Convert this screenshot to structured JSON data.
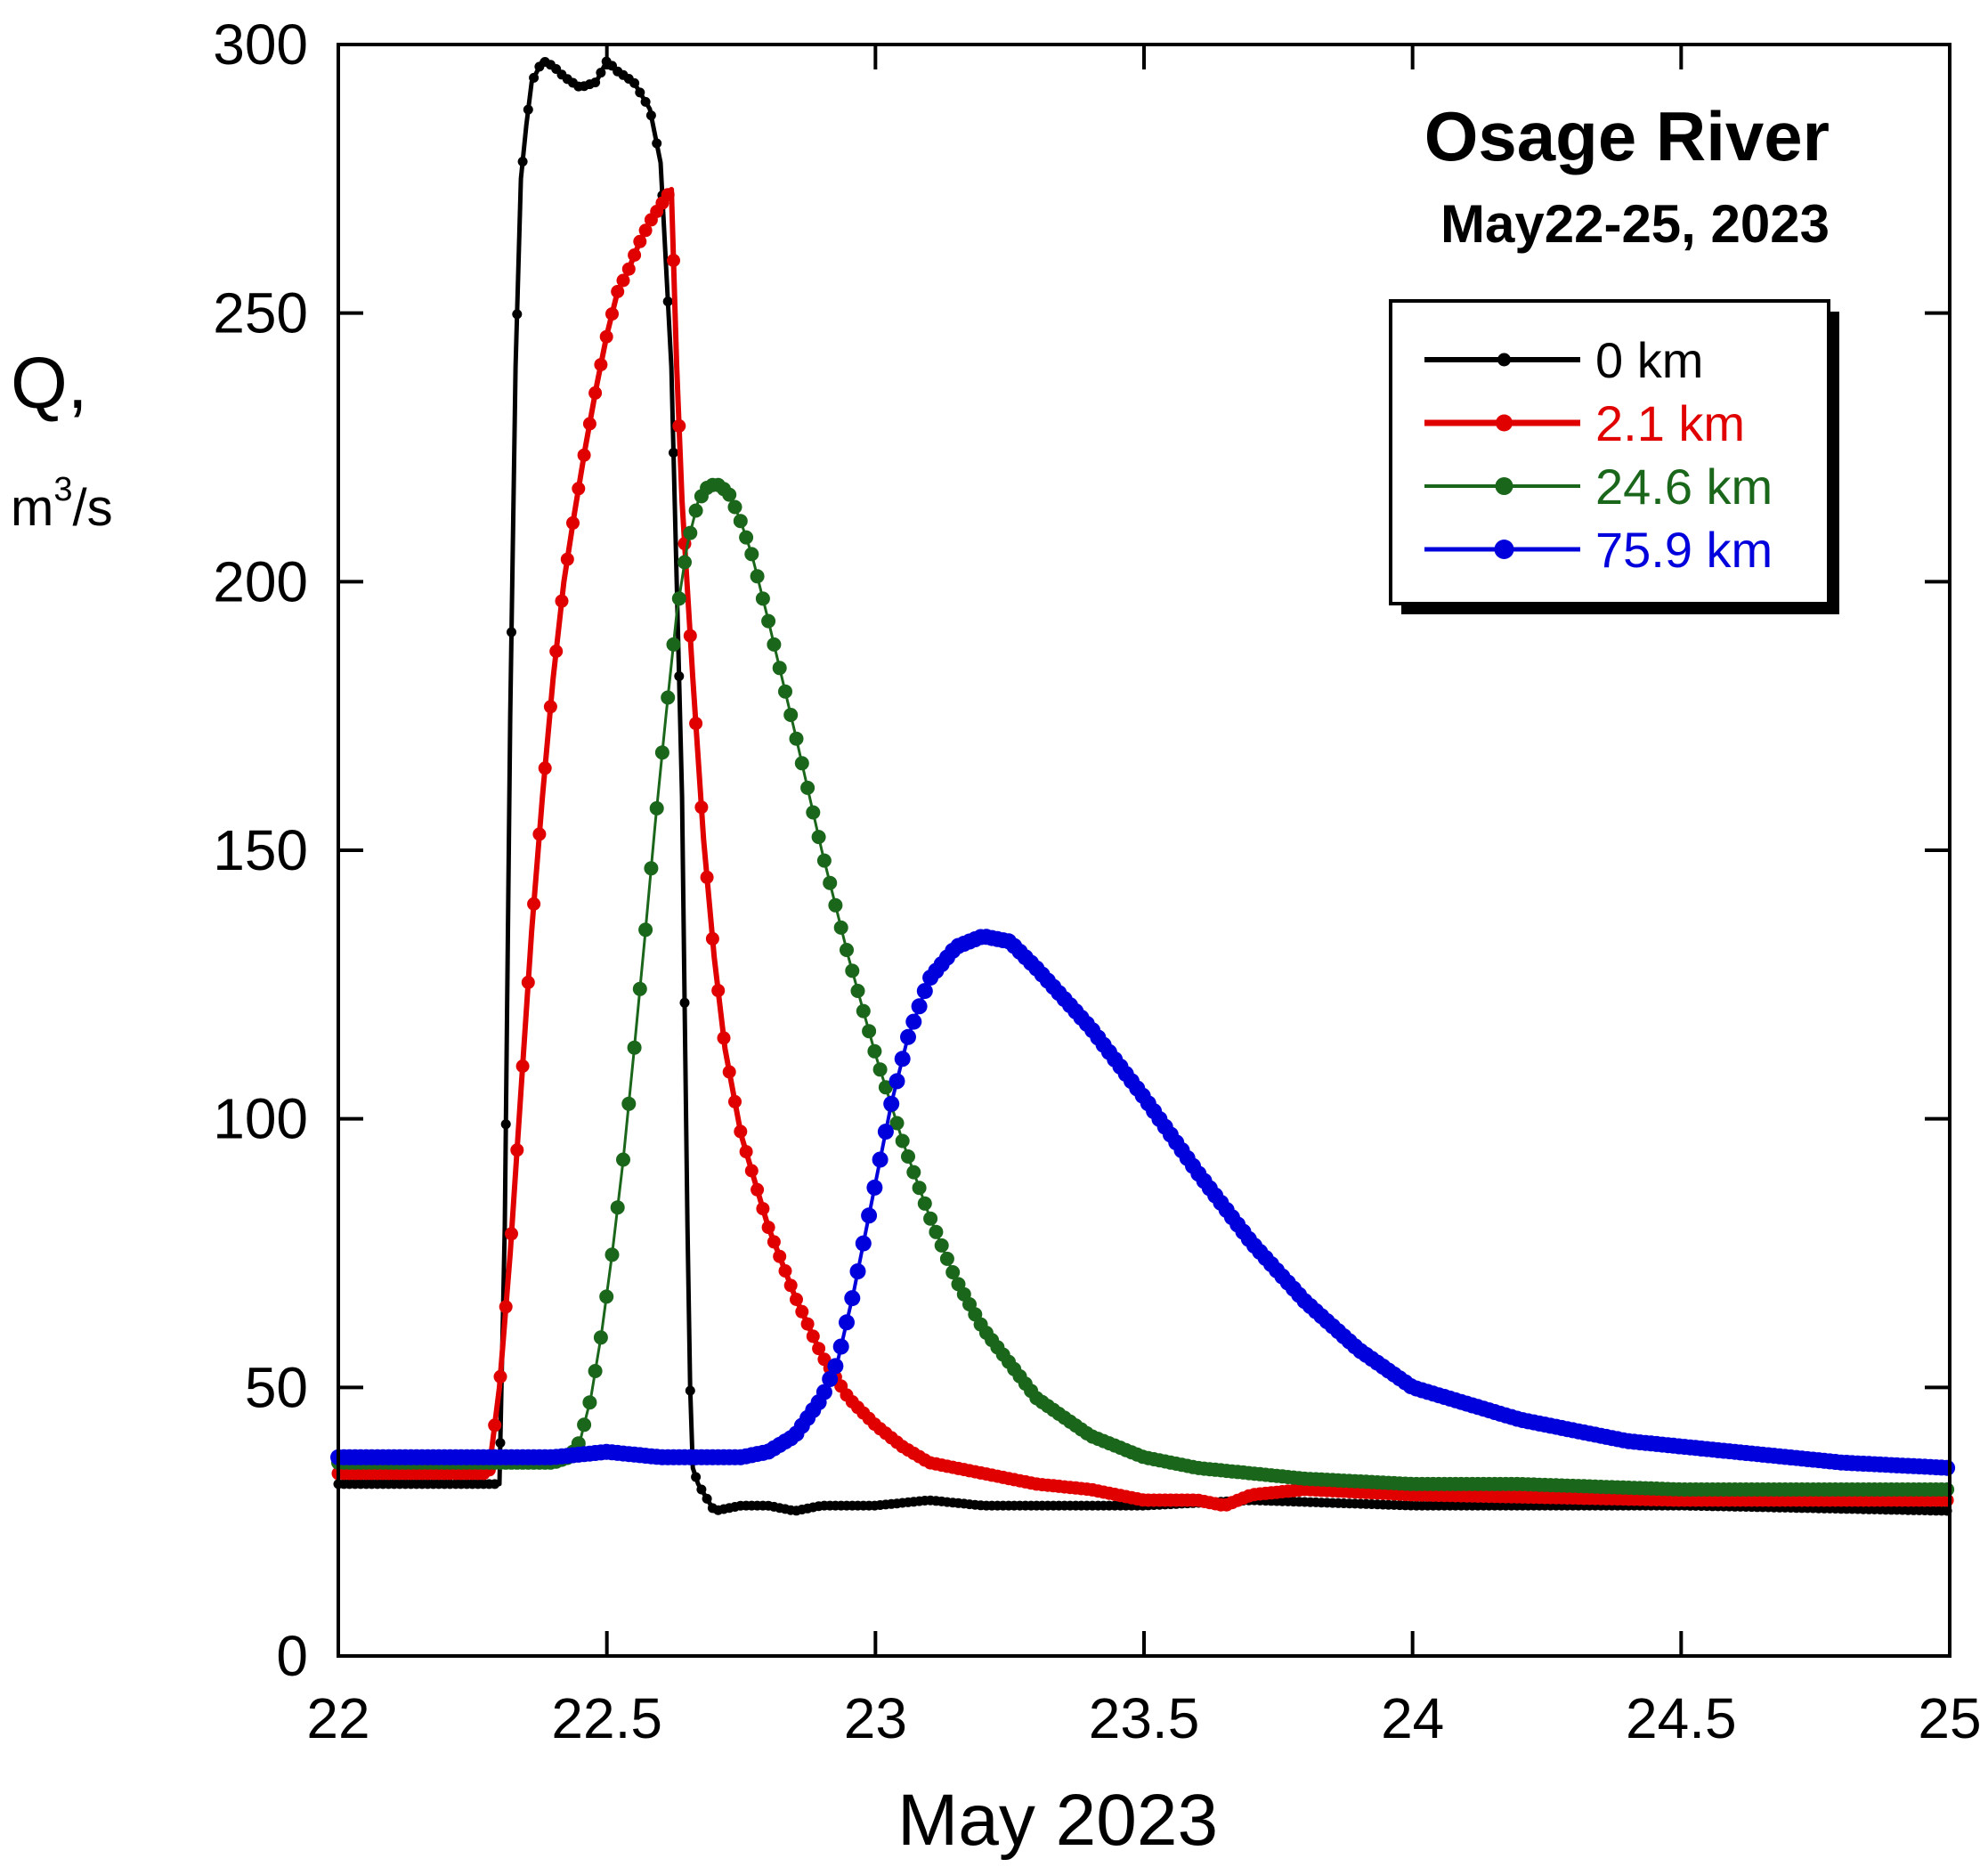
{
  "chart_data": {
    "type": "line",
    "title": "Osage River",
    "subtitle": "May22-25, 2023",
    "xlabel": "May 2023",
    "ylabel": "Q,",
    "ylabel_unit_base": "m",
    "ylabel_unit_sup": "3",
    "ylabel_unit_rest": "/s",
    "xlim": [
      22,
      25
    ],
    "ylim": [
      0,
      300
    ],
    "x_ticks": [
      22,
      22.5,
      23,
      23.5,
      24,
      24.5,
      25
    ],
    "x_tick_labels": [
      "22",
      "22.5",
      "23",
      "23.5",
      "24",
      "24.5",
      "25"
    ],
    "y_ticks": [
      0,
      50,
      100,
      150,
      200,
      250,
      300
    ],
    "y_tick_labels": [
      "0",
      "50",
      "100",
      "150",
      "200",
      "250",
      "300"
    ],
    "grid": false,
    "legend_position": "top-right",
    "series": [
      {
        "name": "0 km",
        "color": "#000000",
        "x": [
          22.0,
          22.1,
          22.2,
          22.3,
          22.31,
          22.32,
          22.33,
          22.34,
          22.35,
          22.36,
          22.38,
          22.4,
          22.42,
          22.45,
          22.48,
          22.5,
          22.52,
          22.55,
          22.58,
          22.6,
          22.62,
          22.63,
          22.64,
          22.645,
          22.65,
          22.655,
          22.66,
          22.67,
          22.7,
          22.75,
          22.8,
          22.85,
          22.9,
          23.0,
          23.1,
          23.2,
          23.5,
          23.7,
          24.0,
          24.5,
          25.0
        ],
        "y": [
          32,
          32,
          32,
          32,
          80,
          175,
          240,
          275,
          285,
          293,
          297,
          296,
          294,
          292,
          293,
          297,
          295,
          293,
          288,
          278,
          240,
          200,
          160,
          120,
          80,
          50,
          35,
          32,
          27,
          28,
          28,
          27,
          28,
          28,
          29,
          28,
          28,
          29,
          28,
          28,
          27
        ]
      },
      {
        "name": "2.1 km",
        "color": "#e00000",
        "x": [
          22.0,
          22.1,
          22.2,
          22.28,
          22.3,
          22.32,
          22.34,
          22.36,
          22.38,
          22.4,
          22.42,
          22.44,
          22.46,
          22.48,
          22.5,
          22.52,
          22.54,
          22.56,
          22.58,
          22.6,
          22.62,
          22.63,
          22.64,
          22.66,
          22.68,
          22.7,
          22.72,
          22.75,
          22.8,
          22.85,
          22.9,
          22.95,
          23.0,
          23.05,
          23.1,
          23.2,
          23.3,
          23.4,
          23.5,
          23.6,
          23.65,
          23.7,
          23.8,
          24.0,
          24.5,
          25.0
        ],
        "y": [
          34,
          34,
          34,
          34,
          50,
          75,
          105,
          135,
          160,
          182,
          200,
          213,
          225,
          236,
          246,
          254,
          258,
          263,
          267,
          270,
          273,
          240,
          215,
          182,
          152,
          130,
          113,
          97,
          80,
          67,
          56,
          48,
          43,
          39,
          36,
          34,
          32,
          31,
          29,
          29,
          28,
          30,
          31,
          30,
          29,
          29
        ]
      },
      {
        "name": "24.6 km",
        "color": "#1a661a",
        "x": [
          22.0,
          22.2,
          22.4,
          22.43,
          22.45,
          22.47,
          22.49,
          22.51,
          22.53,
          22.55,
          22.57,
          22.59,
          22.61,
          22.63,
          22.65,
          22.67,
          22.69,
          22.71,
          22.73,
          22.75,
          22.77,
          22.8,
          22.85,
          22.9,
          22.95,
          23.0,
          23.05,
          23.1,
          23.15,
          23.2,
          23.3,
          23.4,
          23.5,
          23.6,
          23.7,
          23.8,
          24.0,
          24.2,
          24.5,
          25.0
        ],
        "y": [
          36,
          36,
          36,
          37,
          40,
          48,
          60,
          75,
          92,
          112,
          133,
          155,
          175,
          194,
          207,
          215,
          218,
          218,
          216,
          211,
          205,
          193,
          172,
          150,
          130,
          112,
          96,
          82,
          70,
          61,
          48,
          41,
          37,
          35,
          34,
          33,
          32,
          32,
          31,
          31
        ]
      },
      {
        "name": "75.9 km",
        "color": "#0000dd",
        "x": [
          22.0,
          22.2,
          22.4,
          22.5,
          22.6,
          22.7,
          22.75,
          22.8,
          22.85,
          22.9,
          22.93,
          22.96,
          23.0,
          23.03,
          23.06,
          23.1,
          23.15,
          23.2,
          23.25,
          23.3,
          23.4,
          23.5,
          23.6,
          23.7,
          23.8,
          23.9,
          24.0,
          24.2,
          24.4,
          24.6,
          24.8,
          25.0
        ],
        "y": [
          37,
          37,
          37,
          38,
          37,
          37,
          37,
          38,
          41,
          48,
          55,
          68,
          88,
          103,
          115,
          126,
          132,
          134,
          133,
          128,
          117,
          104,
          90,
          77,
          66,
          57,
          50,
          44,
          40,
          38,
          36,
          35
        ]
      }
    ]
  }
}
